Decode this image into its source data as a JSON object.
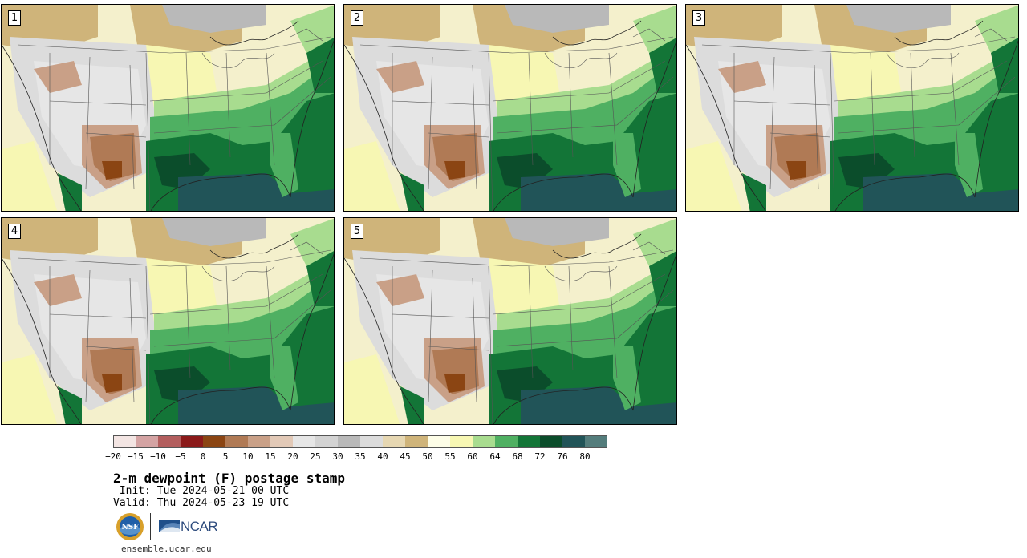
{
  "panels": [
    {
      "label": "1"
    },
    {
      "label": "2"
    },
    {
      "label": "3"
    },
    {
      "label": "4"
    },
    {
      "label": "5"
    }
  ],
  "colorbar": {
    "colors": [
      "#f3e5e3",
      "#d4a3a3",
      "#b35e5e",
      "#8b1a1a",
      "#8b4513",
      "#b07a55",
      "#c9a087",
      "#e2c9b7",
      "#e6e6e6",
      "#d3d3d3",
      "#b9b9b9",
      "#dcdcdc",
      "#e6d7b2",
      "#cfb47a",
      "#fdfde7",
      "#f7f7b3",
      "#a8dc8f",
      "#4fb062",
      "#137537",
      "#0b4d2b",
      "#215458",
      "#547d7c"
    ],
    "ticks": [
      "−20",
      "−15",
      "−10",
      "−5",
      "0",
      "5",
      "10",
      "15",
      "20",
      "25",
      "30",
      "35",
      "40",
      "45",
      "50",
      "55",
      "60",
      "64",
      "68",
      "72",
      "76",
      "80"
    ]
  },
  "title": "2-m dewpoint (F) postage stamp",
  "init": " Init: Tue 2024-05-21 00 UTC",
  "valid": "Valid: Thu 2024-05-23 19 UTC",
  "logos": {
    "nsf": "NSF",
    "ncar": "NCAR"
  },
  "site": "ensemble.ucar.edu"
}
